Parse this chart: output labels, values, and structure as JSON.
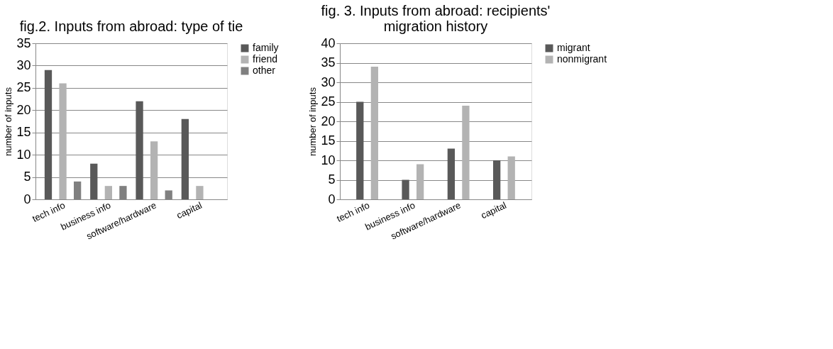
{
  "chart_data": [
    {
      "type": "bar",
      "title": "fig.2.  Inputs from abroad: type of tie",
      "ylabel": "number of inputs",
      "categories": [
        "tech info",
        "business info",
        "software/hardware",
        "capital"
      ],
      "series": [
        {
          "name": "family",
          "color": "#595959",
          "values": [
            29,
            8,
            22,
            18
          ]
        },
        {
          "name": "friend",
          "color": "#b3b3b3",
          "values": [
            26,
            3,
            13,
            3
          ]
        },
        {
          "name": "other",
          "color": "#808080",
          "values": [
            4,
            3,
            2,
            null
          ]
        }
      ],
      "ylim": [
        0,
        35
      ],
      "yticks": [
        0,
        5,
        10,
        15,
        20,
        25,
        30,
        35
      ],
      "grid": "y",
      "legend": "right"
    },
    {
      "type": "bar",
      "title": "fig. 3.  Inputs from abroad: recipients' migration history",
      "ylabel": "number of inputs",
      "categories": [
        "tech info",
        "business info",
        "software/hardware",
        "capital"
      ],
      "series": [
        {
          "name": "migrant",
          "color": "#595959",
          "values": [
            25,
            5,
            13,
            10
          ]
        },
        {
          "name": "nonmigrant",
          "color": "#b3b3b3",
          "values": [
            34,
            9,
            24,
            11
          ]
        }
      ],
      "ylim": [
        0,
        40
      ],
      "yticks": [
        0,
        5,
        10,
        15,
        20,
        25,
        30,
        35,
        40
      ],
      "grid": "y",
      "legend": "right"
    }
  ]
}
